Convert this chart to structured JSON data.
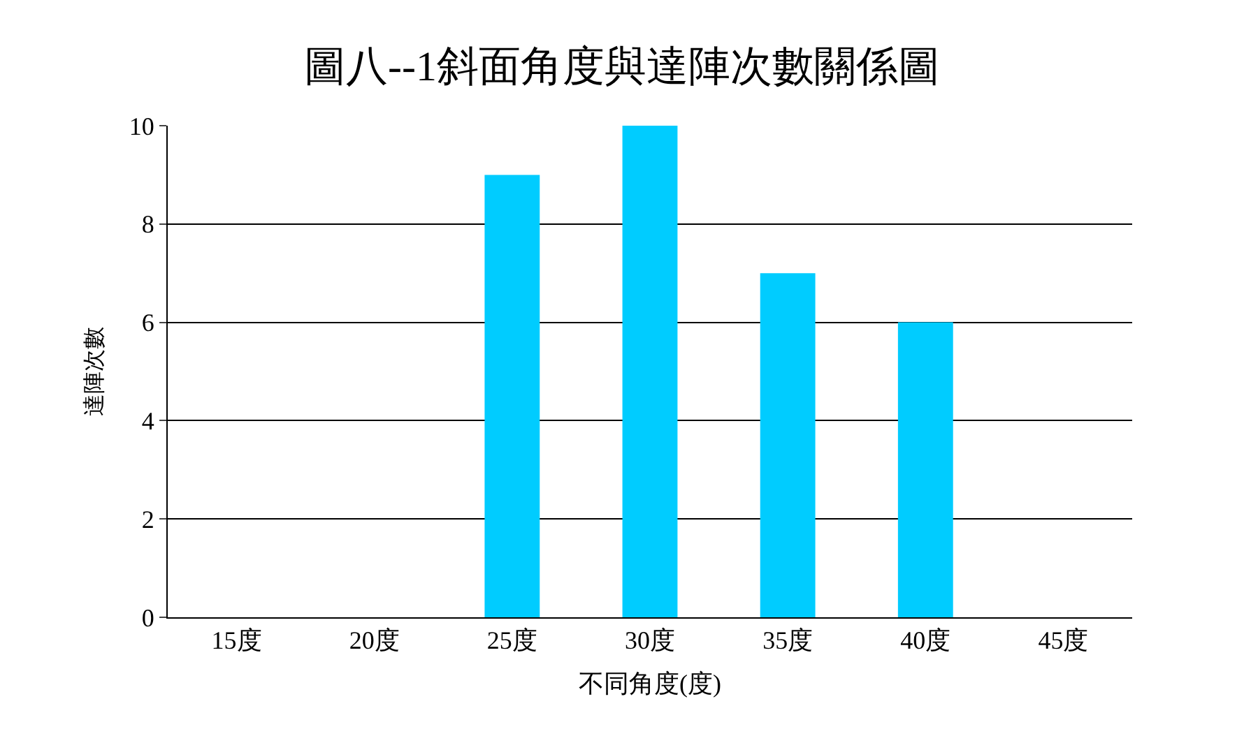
{
  "chart_data": {
    "type": "bar",
    "title": "圖八--1斜面角度與達陣次數關係圖",
    "xlabel": "不同角度(度)",
    "ylabel": "達陣次數",
    "categories": [
      "15度",
      "20度",
      "25度",
      "30度",
      "35度",
      "40度",
      "45度"
    ],
    "values": [
      0,
      0,
      9,
      10,
      7,
      6,
      0
    ],
    "color": "#00ccff",
    "ylim": [
      0,
      10
    ],
    "yticks": [
      0,
      2,
      4,
      6,
      8,
      10
    ],
    "grid": "y",
    "legend": false
  }
}
